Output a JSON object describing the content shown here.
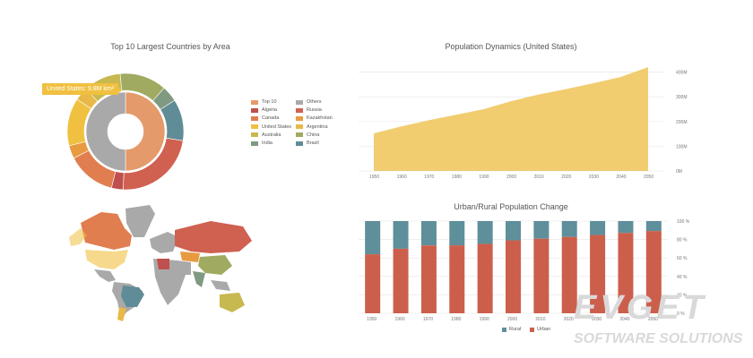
{
  "donut": {
    "title": "Top 10 Largest Countries by Area",
    "tooltip": "United States: 9.8M km²",
    "legend": [
      {
        "label": "Top 10",
        "color": "#e49a6a"
      },
      {
        "label": "Others",
        "color": "#a9a9a9"
      },
      {
        "label": "Algeria",
        "color": "#c0504d"
      },
      {
        "label": "Russia",
        "color": "#d06050"
      },
      {
        "label": "Canada",
        "color": "#e07e4f"
      },
      {
        "label": "Kazakhstan",
        "color": "#e89a40"
      },
      {
        "label": "United States",
        "color": "#f0c040"
      },
      {
        "label": "Argentina",
        "color": "#e8b848"
      },
      {
        "label": "Australia",
        "color": "#c8b850"
      },
      {
        "label": "China",
        "color": "#a0aa60"
      },
      {
        "label": "India",
        "color": "#7f9a80"
      },
      {
        "label": "Brazil",
        "color": "#5f8c96"
      }
    ]
  },
  "area": {
    "title": "Population Dynamics (United States)"
  },
  "bars": {
    "title": "Urban/Rural Population Change",
    "legend_rural": "Rural",
    "legend_urban": "Urban"
  },
  "watermark": {
    "brand": "EVGET",
    "tagline": "SOFTWARE SOLUTIONS"
  },
  "chart_data": [
    {
      "type": "pie",
      "title": "Top 10 Largest Countries by Area",
      "inner_ring": [
        {
          "label": "Top 10",
          "value": 50,
          "color": "#e49a6a"
        },
        {
          "label": "Others",
          "value": 50,
          "color": "#a9a9a9"
        }
      ],
      "outer_ring": [
        {
          "label": "Russia",
          "value": 17.1,
          "color": "#d06050"
        },
        {
          "label": "Algeria",
          "value": 2.4,
          "color": "#c0504d"
        },
        {
          "label": "Canada",
          "value": 10.0,
          "color": "#e07e4f"
        },
        {
          "label": "Kazakhstan",
          "value": 2.7,
          "color": "#e89a40"
        },
        {
          "label": "United States",
          "value": 9.8,
          "color": "#f0c040"
        },
        {
          "label": "Argentina",
          "value": 2.8,
          "color": "#e8b848"
        },
        {
          "label": "Australia",
          "value": 7.7,
          "color": "#c8b850"
        },
        {
          "label": "China",
          "value": 9.6,
          "color": "#a0aa60"
        },
        {
          "label": "India",
          "value": 3.3,
          "color": "#7f9a80"
        },
        {
          "label": "Brazil",
          "value": 8.5,
          "color": "#5f8c96"
        }
      ]
    },
    {
      "type": "area",
      "title": "Population Dynamics (United States)",
      "x": [
        1950,
        1960,
        1970,
        1980,
        1990,
        2000,
        2010,
        2020,
        2030,
        2040,
        2050
      ],
      "values": [
        152,
        180,
        205,
        227,
        250,
        282,
        309,
        331,
        355,
        380,
        420
      ],
      "ytick_labels": [
        "0M",
        "100M",
        "200M",
        "300M",
        "400M"
      ],
      "ylim": [
        0,
        420
      ],
      "color": "#f0c860"
    },
    {
      "type": "bar",
      "title": "Urban/Rural Population Change",
      "categories": [
        "1950",
        "1960",
        "1970",
        "1980",
        "1990",
        "2000",
        "2010",
        "2020",
        "2030",
        "2040",
        "2050"
      ],
      "ytick_labels": [
        "0 %",
        "20 %",
        "40 %",
        "60 %",
        "80 %",
        "100 %"
      ],
      "series": [
        {
          "name": "Urban",
          "color": "#cc5f4c",
          "values": [
            64,
            70,
            73.6,
            73.7,
            75.3,
            79.1,
            80.8,
            82.7,
            84.9,
            87.1,
            89.2
          ]
        },
        {
          "name": "Rural",
          "color": "#5e8f9a",
          "values": [
            36,
            30,
            26.4,
            26.3,
            24.7,
            20.9,
            19.2,
            17.3,
            15.1,
            12.9,
            10.8
          ]
        }
      ],
      "legend": "bottom"
    }
  ]
}
